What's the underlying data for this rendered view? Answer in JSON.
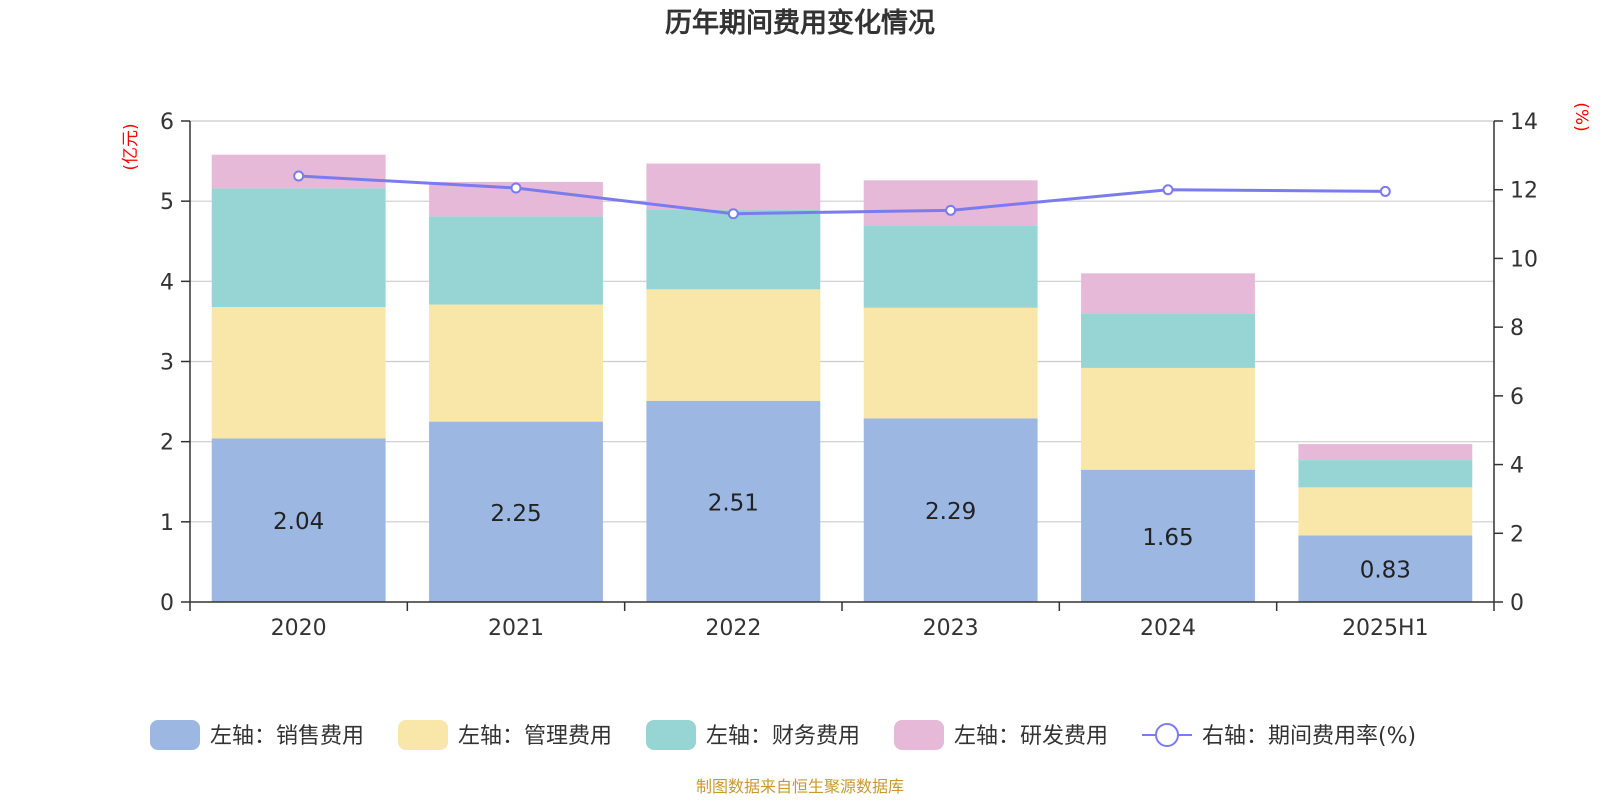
{
  "chart_data": {
    "type": "bar",
    "stacked": true,
    "title": "历年期间费用变化情况",
    "categories": [
      "2020",
      "2021",
      "2022",
      "2023",
      "2024",
      "2025H1"
    ],
    "left_axis": {
      "unit": "(亿元)",
      "ylim": [
        0,
        6
      ],
      "ticks": [
        0,
        1,
        2,
        3,
        4,
        5,
        6
      ]
    },
    "right_axis": {
      "unit": "(%)",
      "ylim": [
        0,
        14
      ],
      "ticks": [
        0,
        2,
        4,
        6,
        8,
        10,
        12,
        14
      ]
    },
    "series": [
      {
        "name": "左轴：销售费用",
        "axis": "left",
        "type": "bar",
        "color": "#9bb7e2",
        "values": [
          2.04,
          2.25,
          2.51,
          2.29,
          1.65,
          0.83
        ],
        "show_labels": true
      },
      {
        "name": "左轴：管理费用",
        "axis": "left",
        "type": "bar",
        "color": "#f8e7a8",
        "values": [
          1.64,
          1.46,
          1.39,
          1.38,
          1.27,
          0.6
        ]
      },
      {
        "name": "左轴：财务费用",
        "axis": "left",
        "type": "bar",
        "color": "#97d4d4",
        "values": [
          1.48,
          1.1,
          1.0,
          1.03,
          0.68,
          0.34
        ]
      },
      {
        "name": "左轴：研发费用",
        "axis": "left",
        "type": "bar",
        "color": "#e7b9d9",
        "values": [
          0.42,
          0.43,
          0.57,
          0.56,
          0.5,
          0.2
        ]
      },
      {
        "name": "右轴：期间费用率(%)",
        "axis": "right",
        "type": "line",
        "color": "#7b7bf0",
        "values": [
          12.4,
          12.05,
          11.3,
          11.4,
          12.0,
          11.95
        ]
      }
    ],
    "grid": true,
    "legend_position": "bottom"
  },
  "source_note": "制图数据来自恒生聚源数据库"
}
